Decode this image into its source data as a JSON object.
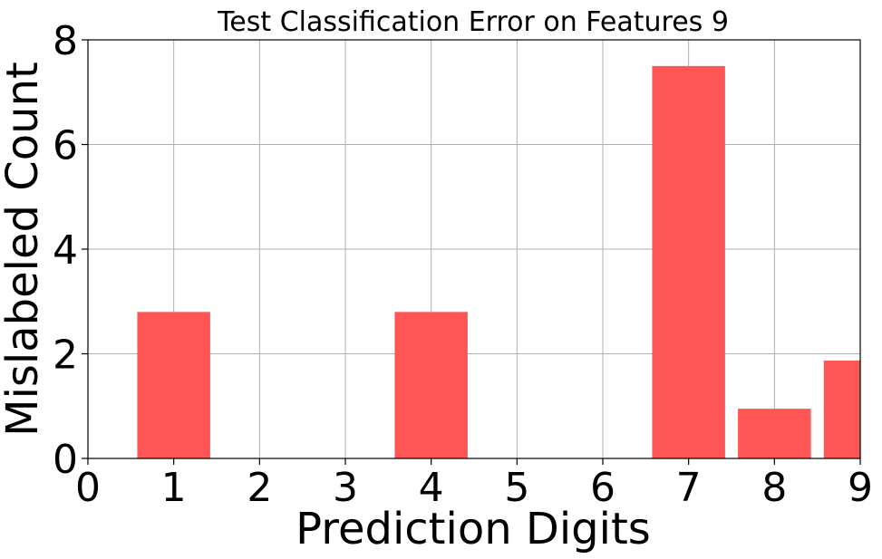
{
  "chart_data": {
    "type": "bar",
    "title": "Test Classification Error on Features 9",
    "xlabel": "Prediction Digits",
    "ylabel": "Mislabeled Count",
    "categories": [
      1,
      4,
      7,
      8,
      9
    ],
    "values": [
      2.8,
      2.8,
      7.5,
      0.95,
      1.87
    ],
    "xlim": [
      0,
      9
    ],
    "ylim": [
      0,
      8
    ],
    "xticks": [
      0,
      1,
      2,
      3,
      4,
      5,
      6,
      7,
      8,
      9
    ],
    "yticks": [
      0,
      2,
      4,
      6,
      8
    ],
    "bar_color": "#ff5555",
    "grid": true
  }
}
